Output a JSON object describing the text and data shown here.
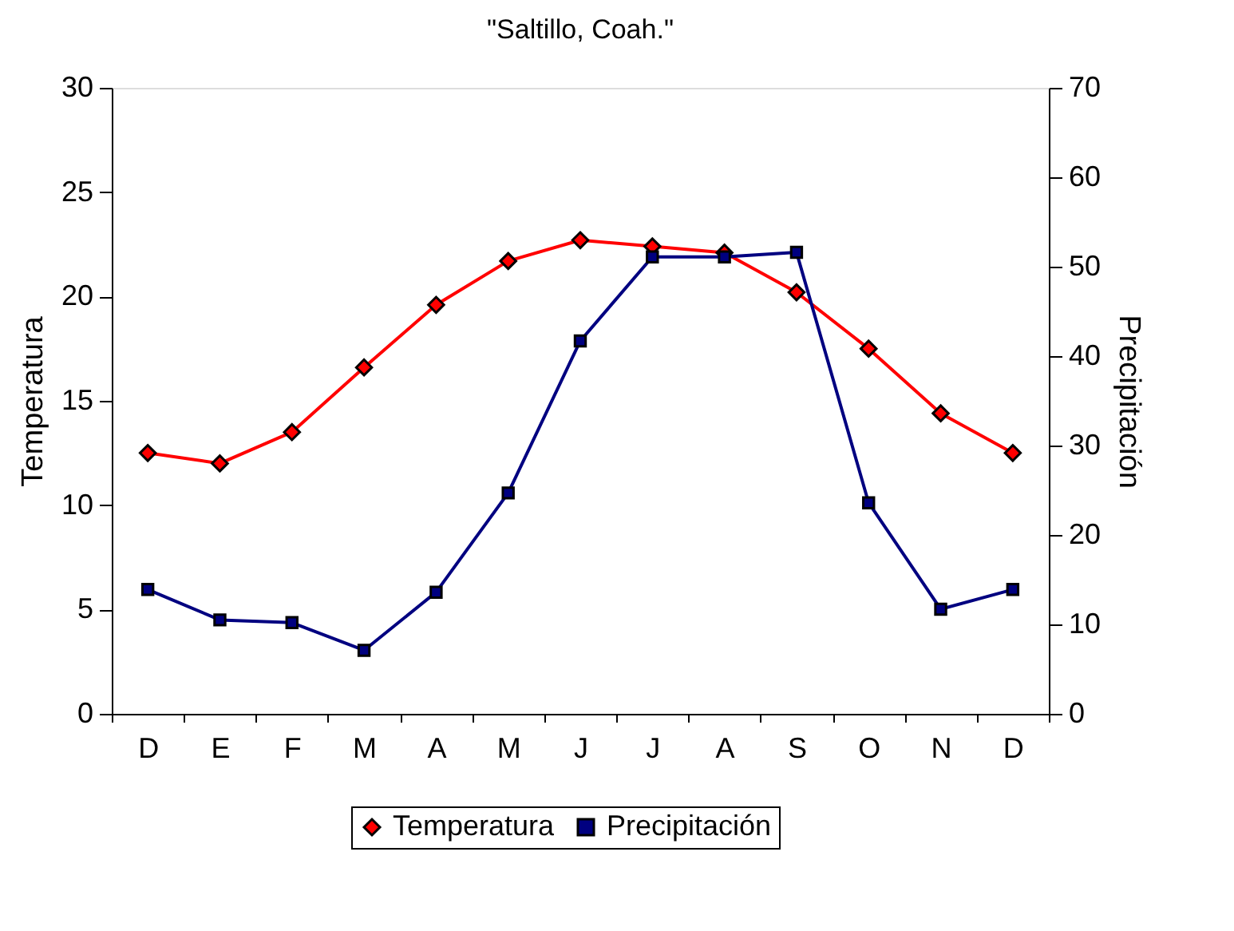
{
  "chart_data": {
    "type": "line",
    "title": "\"Saltillo, Coah.\"",
    "ylabel": "Temperatura",
    "y2label": "Precipitación",
    "categories": [
      "D",
      "E",
      "F",
      "M",
      "A",
      "M",
      "J",
      "J",
      "A",
      "S",
      "O",
      "N",
      "D"
    ],
    "series": [
      {
        "name": "Temperatura",
        "color": "#ff0000",
        "marker": "diamond",
        "values": [
          12.5,
          12.0,
          13.5,
          16.6,
          19.6,
          21.7,
          22.7,
          22.4,
          22.1,
          20.2,
          17.5,
          14.4,
          12.5
        ]
      },
      {
        "name": "Precipitación",
        "color": "#000080",
        "marker": "square",
        "axis": "y2",
        "values": [
          13.9,
          10.5,
          10.2,
          7.1,
          13.6,
          24.7,
          41.7,
          51.1,
          51.1,
          51.6,
          23.6,
          11.7,
          13.9
        ]
      }
    ],
    "ylim": [
      0,
      30
    ],
    "yticks": [
      0,
      5,
      10,
      15,
      20,
      25,
      30
    ],
    "y2lim": [
      0,
      70
    ],
    "y2ticks": [
      0,
      10,
      20,
      30,
      40,
      50,
      60,
      70
    ],
    "grid": false,
    "legend": "bottom",
    "line_style": "solid"
  }
}
